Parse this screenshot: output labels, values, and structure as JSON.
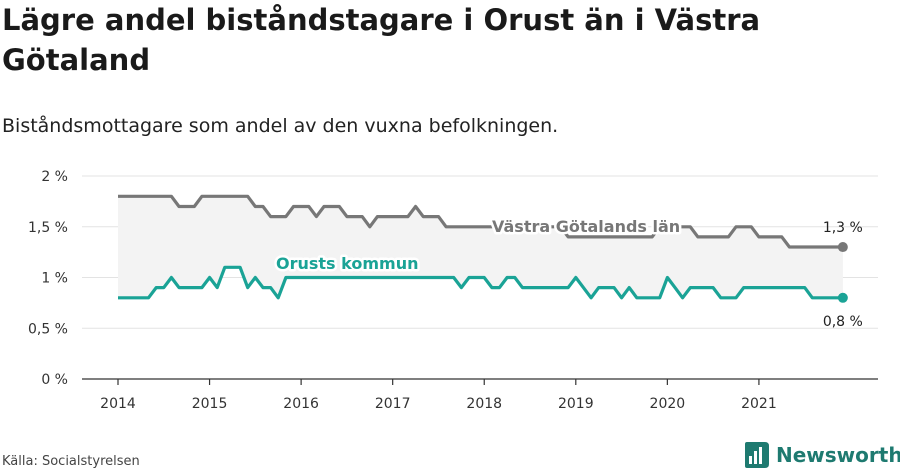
{
  "title": "Lägre andel biståndstagare i Orust än i Västra Götaland",
  "subtitle": "Biståndsmottagare som andel av den vuxna befolkningen.",
  "source": "Källa: Socialstyrelsen",
  "brand": {
    "name": "Newsworthy",
    "icon": "newsworthy-logo-icon"
  },
  "colors": {
    "vg": "#777777",
    "orust": "#1aa396",
    "band": "#f3f3f3",
    "grid": "#e3e3e3",
    "axis": "#333333",
    "brand": "#1e7a70"
  },
  "chart_data": {
    "type": "line",
    "title": "Lägre andel biståndstagare i Orust än i Västra Götaland",
    "ylim": [
      0,
      2
    ],
    "y_ticks": [
      "0 %",
      "0,5 %",
      "1 %",
      "1,5 %",
      "2 %"
    ],
    "x_range": [
      "2014-01",
      "2021-12"
    ],
    "x_ticks": [
      "2014",
      "2015",
      "2016",
      "2017",
      "2018",
      "2019",
      "2020",
      "2021"
    ],
    "grid": true,
    "shaded_between_series": true,
    "series": [
      {
        "name": "Västra Götalands län",
        "end_label": "1,3 %",
        "start": "2014-01",
        "values": [
          1.8,
          1.8,
          1.8,
          1.8,
          1.8,
          1.8,
          1.8,
          1.8,
          1.7,
          1.7,
          1.7,
          1.8,
          1.8,
          1.8,
          1.8,
          1.8,
          1.8,
          1.8,
          1.7,
          1.7,
          1.6,
          1.6,
          1.6,
          1.7,
          1.7,
          1.7,
          1.6,
          1.7,
          1.7,
          1.7,
          1.6,
          1.6,
          1.6,
          1.5,
          1.6,
          1.6,
          1.6,
          1.6,
          1.6,
          1.7,
          1.6,
          1.6,
          1.6,
          1.5,
          1.5,
          1.5,
          1.5,
          1.5,
          1.5,
          1.5,
          1.5,
          1.5,
          1.5,
          1.5,
          1.5,
          1.5,
          1.5,
          1.5,
          1.5,
          1.4,
          1.4,
          1.4,
          1.4,
          1.4,
          1.4,
          1.4,
          1.4,
          1.4,
          1.4,
          1.4,
          1.4,
          1.5,
          1.5,
          1.5,
          1.5,
          1.5,
          1.4,
          1.4,
          1.4,
          1.4,
          1.4,
          1.5,
          1.5,
          1.5,
          1.4,
          1.4,
          1.4,
          1.4,
          1.3,
          1.3,
          1.3,
          1.3,
          1.3,
          1.3,
          1.3,
          1.3
        ]
      },
      {
        "name": "Orusts kommun",
        "end_label": "0,8 %",
        "start": "2014-01",
        "values": [
          0.8,
          0.8,
          0.8,
          0.8,
          0.8,
          0.9,
          0.9,
          1.0,
          0.9,
          0.9,
          0.9,
          0.9,
          1.0,
          0.9,
          1.1,
          1.1,
          1.1,
          0.9,
          1.0,
          0.9,
          0.9,
          0.8,
          1.0,
          1.0,
          1.0,
          1.0,
          1.0,
          1.0,
          1.0,
          1.0,
          1.0,
          1.0,
          1.0,
          1.0,
          1.0,
          1.0,
          1.0,
          1.0,
          1.0,
          1.0,
          1.0,
          1.0,
          1.0,
          1.0,
          1.0,
          0.9,
          1.0,
          1.0,
          1.0,
          0.9,
          0.9,
          1.0,
          1.0,
          0.9,
          0.9,
          0.9,
          0.9,
          0.9,
          0.9,
          0.9,
          1.0,
          0.9,
          0.8,
          0.9,
          0.9,
          0.9,
          0.8,
          0.9,
          0.8,
          0.8,
          0.8,
          0.8,
          1.0,
          0.9,
          0.8,
          0.9,
          0.9,
          0.9,
          0.9,
          0.8,
          0.8,
          0.8,
          0.9,
          0.9,
          0.9,
          0.9,
          0.9,
          0.9,
          0.9,
          0.9,
          0.9,
          0.8,
          0.8,
          0.8,
          0.8,
          0.8
        ]
      }
    ]
  }
}
